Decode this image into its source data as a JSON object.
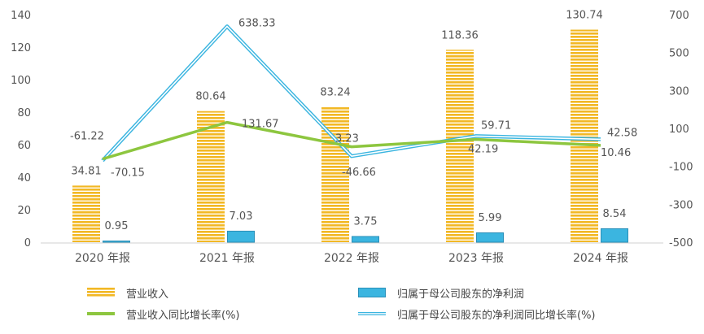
{
  "chart_data": {
    "type": "bar",
    "categories": [
      "2020 年报",
      "2021 年报",
      "2022 年报",
      "2023 年报",
      "2024 年报"
    ],
    "series": [
      {
        "name": "营业收入",
        "kind": "bar",
        "axis": "left",
        "color": "#F2B824",
        "values": [
          34.81,
          80.64,
          83.24,
          118.36,
          130.74
        ],
        "labels": [
          "34.81",
          "80.64",
          "83.24",
          "118.36",
          "130.74"
        ]
      },
      {
        "name": "归属于母公司股东的净利润",
        "kind": "bar",
        "axis": "left",
        "color": "#3BB5E0",
        "values": [
          0.95,
          7.03,
          3.75,
          5.99,
          8.54
        ],
        "labels": [
          "0.95",
          "7.03",
          "3.75",
          "5.99",
          "8.54"
        ]
      },
      {
        "name": "营业收入同比增长率(%)",
        "kind": "line",
        "axis": "right",
        "color": "#8DC63F",
        "values": [
          -61.22,
          131.67,
          3.23,
          42.19,
          10.46
        ],
        "labels": [
          "-61.22",
          "131.67",
          "3.23",
          "42.19",
          "10.46"
        ]
      },
      {
        "name": "归属于母公司股东的净利润同比增长率(%)",
        "kind": "line",
        "axis": "right",
        "color": "#3BB5E0",
        "values": [
          -70.15,
          638.33,
          -46.66,
          59.71,
          42.58
        ],
        "labels": [
          "-70.15",
          "638.33",
          "-46.66",
          "59.71",
          "42.58"
        ]
      }
    ],
    "y_left": {
      "min": 0,
      "max": 140,
      "ticks": [
        "0",
        "20",
        "40",
        "60",
        "80",
        "100",
        "120",
        "140"
      ]
    },
    "y_right": {
      "min": -500,
      "max": 700,
      "ticks": [
        "-500",
        "-300",
        "-100",
        "100",
        "300",
        "500",
        "700"
      ]
    },
    "grid": false,
    "legend_position": "bottom"
  }
}
